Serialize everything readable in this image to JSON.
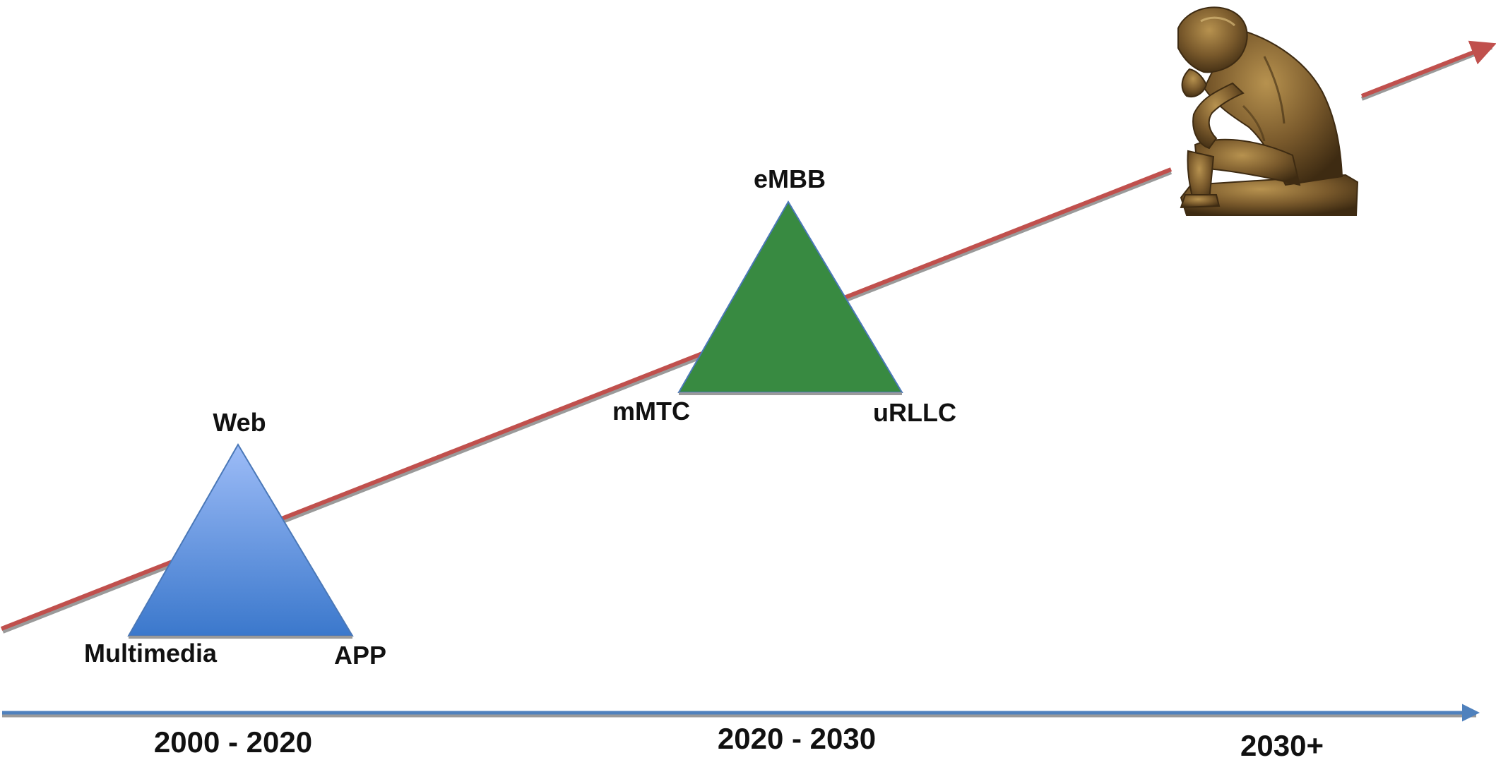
{
  "colors": {
    "growth_arrow": "#c0504d",
    "timeline_arrow": "#4f81bd",
    "triangle_past_top": "#9dbcf7",
    "triangle_past_bottom": "#3b78cc",
    "triangle_present": "#388a41",
    "triangle_edge": "#4a78b8",
    "statue_bronze": "#7a5a2c",
    "statue_shadow": "#3e2b12",
    "statue_highlight": "#b7924f"
  },
  "triangles": {
    "past": {
      "top_label": "Web",
      "left_label": "Multimedia",
      "right_label": "APP"
    },
    "present": {
      "top_label": "eMBB",
      "left_label": "mMTC",
      "right_label": "uRLLC"
    }
  },
  "future": {
    "icon": "thinker-statue-icon"
  },
  "timeline": {
    "eras": [
      "2000 - 2020",
      "2020 - 2030",
      "2030+"
    ]
  }
}
